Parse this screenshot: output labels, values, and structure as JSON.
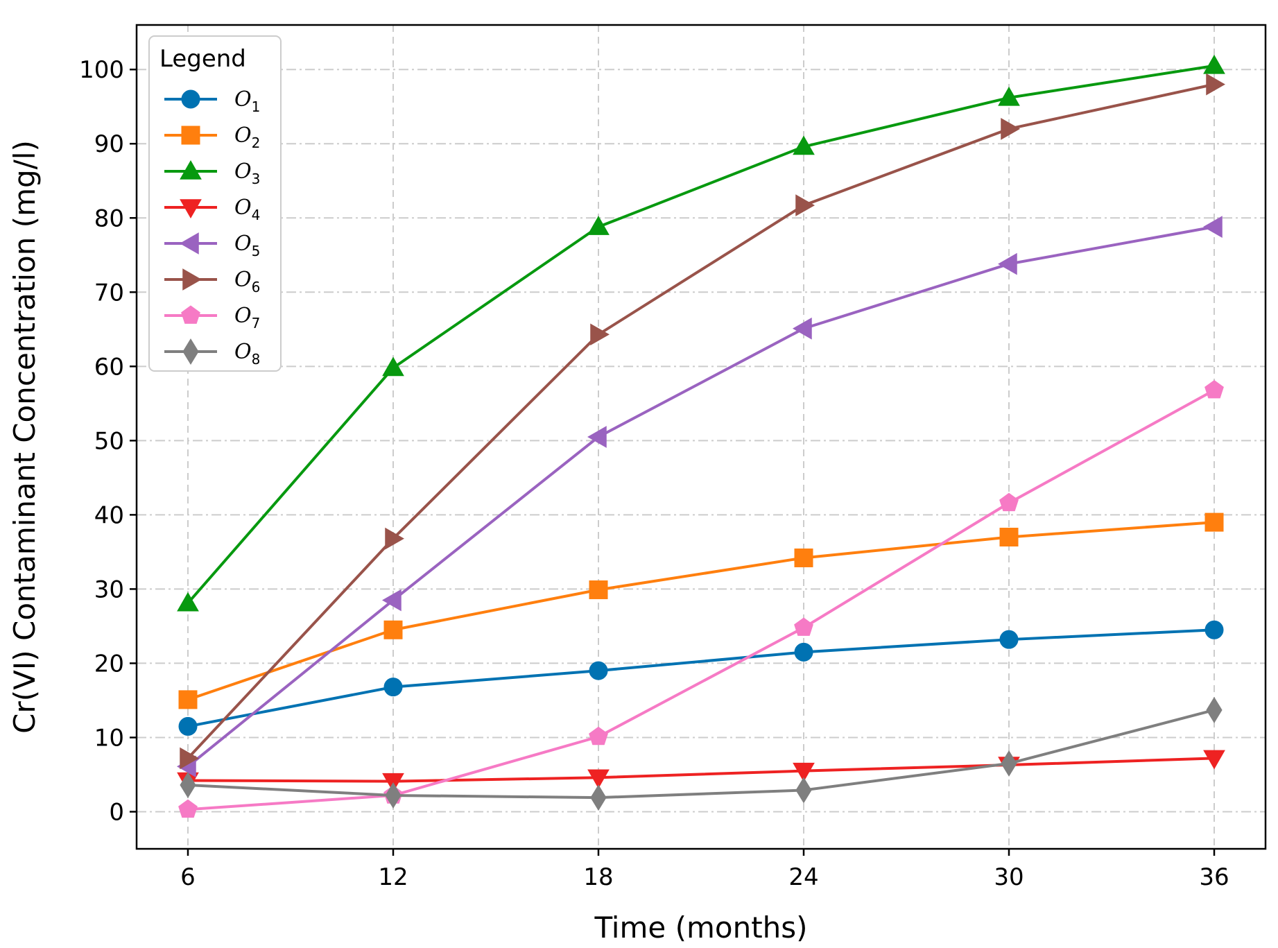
{
  "chart_data": {
    "type": "line",
    "title": "",
    "xlabel": "Time (months)",
    "ylabel": "Cr(VI) Contaminant Concentration (mg/l)",
    "x": [
      6,
      12,
      18,
      24,
      30,
      36
    ],
    "xticks": [
      "6",
      "12",
      "18",
      "24",
      "30",
      "36"
    ],
    "xlim": [
      4.5,
      37.5
    ],
    "ylim": [
      -5,
      106
    ],
    "yticks": [
      "0",
      "10",
      "20",
      "30",
      "40",
      "50",
      "60",
      "70",
      "80",
      "90",
      "100"
    ],
    "grid": true,
    "legend": {
      "title": "Legend",
      "placement": "top-left"
    },
    "series": [
      {
        "name": "O",
        "sub": "1",
        "color": "#0072b2",
        "marker": "circle",
        "values": [
          11.5,
          16.8,
          19.0,
          21.5,
          23.2,
          24.5
        ]
      },
      {
        "name": "O",
        "sub": "2",
        "color": "#ff7f0e",
        "marker": "square",
        "values": [
          15.1,
          24.5,
          29.9,
          34.2,
          37.0,
          39.0
        ]
      },
      {
        "name": "O",
        "sub": "3",
        "color": "#07990f",
        "marker": "triangle-up",
        "values": [
          28.1,
          59.8,
          78.8,
          89.6,
          96.2,
          100.5
        ]
      },
      {
        "name": "O",
        "sub": "4",
        "color": "#ee2222",
        "marker": "triangle-down",
        "values": [
          4.2,
          4.1,
          4.6,
          5.5,
          6.3,
          7.2
        ]
      },
      {
        "name": "O",
        "sub": "5",
        "color": "#9a63c0",
        "marker": "triangle-left",
        "values": [
          6.1,
          28.5,
          50.5,
          65.1,
          73.8,
          78.8
        ]
      },
      {
        "name": "O",
        "sub": "6",
        "color": "#99534a",
        "marker": "triangle-right",
        "values": [
          7.2,
          36.8,
          64.3,
          81.7,
          92.0,
          98.0
        ]
      },
      {
        "name": "O",
        "sub": "7",
        "color": "#f67ac5",
        "marker": "pentagon",
        "values": [
          0.3,
          2.2,
          10.1,
          24.8,
          41.6,
          56.8
        ]
      },
      {
        "name": "O",
        "sub": "8",
        "color": "#7f7f7f",
        "marker": "diamond",
        "values": [
          3.6,
          2.2,
          1.9,
          2.9,
          6.5,
          13.7
        ]
      }
    ]
  }
}
